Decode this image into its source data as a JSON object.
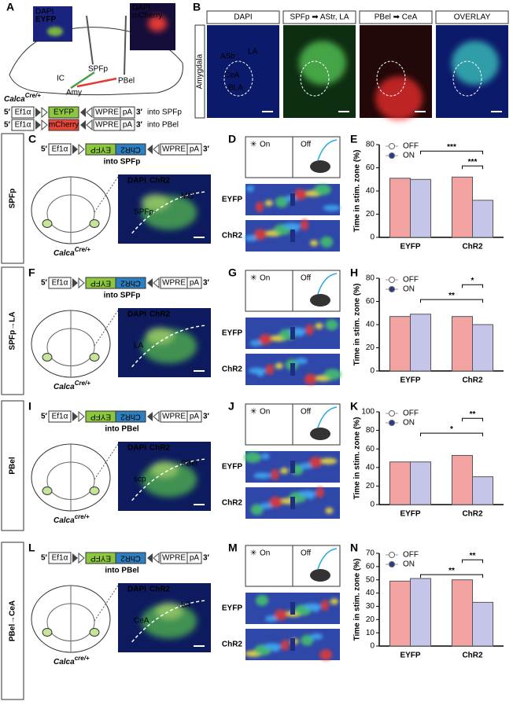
{
  "panel_a": {
    "letter": "A",
    "inset1": [
      "DAPI",
      "EYFP"
    ],
    "inset2": [
      "DAPI",
      "mCherry"
    ],
    "regions": [
      "SPFp",
      "IC",
      "Amy",
      "PBel"
    ],
    "mouse": "Calca",
    "mouse_sup": "Cre/+",
    "constructs": [
      {
        "five": "5′",
        "promoter": "Ef1α",
        "genes": [
          {
            "name": "EYFP",
            "color": "#8dc63f"
          }
        ],
        "wpre": "WPRE",
        "pa": "pA",
        "three": "3′",
        "target": "into SPFp"
      },
      {
        "five": "5′",
        "promoter": "Ef1α",
        "genes": [
          {
            "name": "mCherry",
            "color": "#e8463a"
          }
        ],
        "wpre": "WPRE",
        "pa": "pA",
        "three": "3′",
        "target": "into PBel"
      }
    ]
  },
  "panel_b": {
    "letter": "B",
    "side": "Amygdala",
    "headers": [
      "DAPI",
      "SPFp ➡ AStr, LA",
      "PBel ➡ CeA",
      "OVERLAY"
    ],
    "regions": [
      "AStr",
      "LA",
      "CeA",
      "BLA"
    ]
  },
  "rows": [
    {
      "side": "SPFp",
      "letters": [
        "C",
        "D",
        "E"
      ],
      "construct": {
        "five": "5′",
        "promoter": "Ef1α",
        "genes": [
          {
            "name": "EYFP",
            "color": "#8dc63f"
          },
          {
            "name": "ChR2",
            "color": "#2e7fbf"
          }
        ],
        "wpre": "WPRE",
        "pa": "pA",
        "three": "3′",
        "target": "into SPFp"
      },
      "histology": {
        "stains": [
          "DAPI",
          "ChR2"
        ],
        "regions": [
          "SPFp",
          "MG"
        ]
      },
      "mouse": "Calca",
      "mouse_sup": "Cre/+",
      "heatmap": {
        "on": "On",
        "off": "Off",
        "groups": [
          "EYFP",
          "ChR2"
        ]
      }
    },
    {
      "side": "SPFp→LA",
      "letters": [
        "F",
        "G",
        "H"
      ],
      "construct": {
        "five": "5′",
        "promoter": "Ef1α",
        "genes": [
          {
            "name": "EYFP",
            "color": "#8dc63f"
          },
          {
            "name": "ChR2",
            "color": "#2e7fbf"
          }
        ],
        "wpre": "WPRE",
        "pa": "pA",
        "three": "3′",
        "target": "into SPFp"
      },
      "histology": {
        "stains": [
          "DAPI",
          "ChR2"
        ],
        "regions": [
          "LA"
        ]
      },
      "mouse": "Calca",
      "mouse_sup": "Cre/+",
      "heatmap": {
        "on": "On",
        "off": "Off",
        "groups": [
          "EYFP",
          "ChR2"
        ]
      }
    },
    {
      "side": "PBel",
      "letters": [
        "I",
        "J",
        "K"
      ],
      "construct": {
        "five": "5′",
        "promoter": "Ef1α",
        "genes": [
          {
            "name": "EYFP",
            "color": "#8dc63f"
          },
          {
            "name": "ChR2",
            "color": "#2e7fbf"
          }
        ],
        "wpre": "WPRE",
        "pa": "pA",
        "three": "3′",
        "target": "into PBel"
      },
      "histology": {
        "stains": [
          "DAPI",
          "ChR2"
        ],
        "regions": [
          "scp",
          "PBel"
        ]
      },
      "mouse": "Calca",
      "mouse_sup": "cre/+",
      "heatmap": {
        "on": "On",
        "off": "Off",
        "groups": [
          "EYFP",
          "ChR2"
        ]
      }
    },
    {
      "side": "PBel→CeA",
      "letters": [
        "L",
        "M",
        "N"
      ],
      "construct": {
        "five": "5′",
        "promoter": "Ef1α",
        "genes": [
          {
            "name": "EYFP",
            "color": "#8dc63f"
          },
          {
            "name": "ChR2",
            "color": "#2e7fbf"
          }
        ],
        "wpre": "WPRE",
        "pa": "pA",
        "three": "3′",
        "target": "into PBel"
      },
      "histology": {
        "stains": [
          "DAPI",
          "ChR2"
        ],
        "regions": [
          "CeA",
          "LA"
        ]
      },
      "mouse": "Calca",
      "mouse_sup": "cre/+",
      "heatmap": {
        "on": "On",
        "off": "Off",
        "groups": [
          "EYFP",
          "ChR2"
        ]
      }
    }
  ],
  "chart_data": [
    {
      "type": "bar",
      "y_label": "Time in stim. zone (%)",
      "categories": [
        "EYFP",
        "ChR2"
      ],
      "series": [
        {
          "name": "OFF",
          "color": "#f4a3a3",
          "marker_color": "#ffffff",
          "values": [
            51,
            52
          ]
        },
        {
          "name": "ON",
          "color": "#c5c5ea",
          "marker_color": "#2b3a8f",
          "values": [
            50,
            32
          ]
        }
      ],
      "ylim": [
        0,
        80
      ],
      "yticks": [
        0,
        20,
        40,
        60,
        80
      ],
      "comparisons": {
        "between": "***",
        "within": "***"
      }
    },
    {
      "type": "bar",
      "y_label": "Time in stim. zone (%)",
      "categories": [
        "EYFP",
        "ChR2"
      ],
      "series": [
        {
          "name": "OFF",
          "color": "#f4a3a3",
          "marker_color": "#ffffff",
          "values": [
            47,
            47
          ]
        },
        {
          "name": "ON",
          "color": "#c5c5ea",
          "marker_color": "#2b3a8f",
          "values": [
            49,
            40
          ]
        }
      ],
      "ylim": [
        0,
        80
      ],
      "yticks": [
        0,
        20,
        40,
        60,
        80
      ],
      "comparisons": {
        "between": "**",
        "within": "*"
      }
    },
    {
      "type": "bar",
      "y_label": "Time in stim. zone (%)",
      "categories": [
        "EYFP",
        "ChR2"
      ],
      "series": [
        {
          "name": "OFF",
          "color": "#f4a3a3",
          "marker_color": "#ffffff",
          "values": [
            46,
            53
          ]
        },
        {
          "name": "ON",
          "color": "#c5c5ea",
          "marker_color": "#2b3a8f",
          "values": [
            46,
            30
          ]
        }
      ],
      "ylim": [
        0,
        100
      ],
      "yticks": [
        0,
        20,
        40,
        60,
        80,
        100
      ],
      "comparisons": {
        "between": "*",
        "within": "**"
      }
    },
    {
      "type": "bar",
      "y_label": "Time in stim. zone (%)",
      "categories": [
        "EYFP",
        "ChR2"
      ],
      "series": [
        {
          "name": "OFF",
          "color": "#f4a3a3",
          "marker_color": "#ffffff",
          "values": [
            49,
            50
          ]
        },
        {
          "name": "ON",
          "color": "#c5c5ea",
          "marker_color": "#2b3a8f",
          "values": [
            51,
            33
          ]
        }
      ],
      "ylim": [
        0,
        70
      ],
      "yticks": [
        0,
        10,
        20,
        30,
        40,
        50,
        60,
        70
      ],
      "comparisons": {
        "between": "**",
        "within": "**"
      }
    }
  ]
}
